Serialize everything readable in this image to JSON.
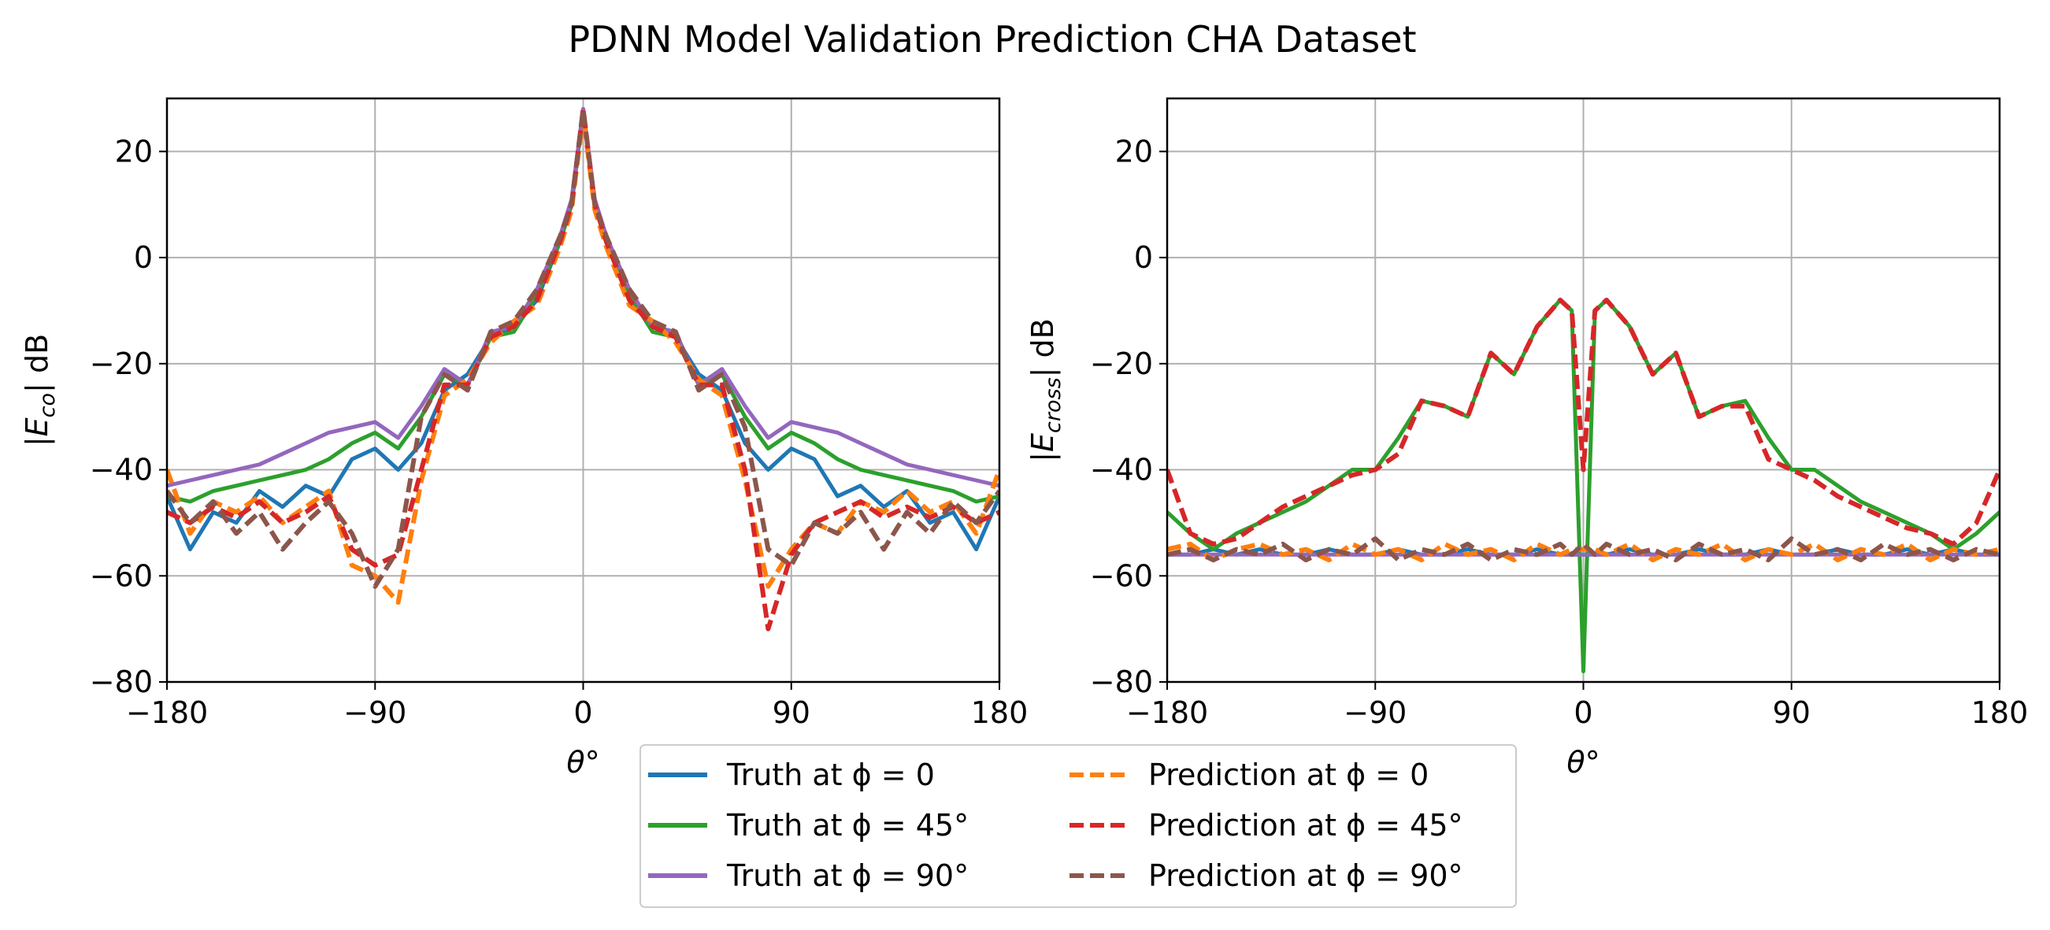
{
  "figure": {
    "title": "PDNN Model Validation Prediction CHA Dataset"
  },
  "legend": {
    "placement": "lower center",
    "columns": 2,
    "entries": [
      {
        "label": "Truth at ϕ = 0",
        "color": "#1f77b4",
        "style": "solid"
      },
      {
        "label": "Truth at ϕ = 45°",
        "color": "#2ca02c",
        "style": "solid"
      },
      {
        "label": "Truth at ϕ = 90°",
        "color": "#9467bd",
        "style": "solid"
      },
      {
        "label": "Prediction at ϕ = 0",
        "color": "#ff7f0e",
        "style": "dashed"
      },
      {
        "label": "Prediction at ϕ = 45°",
        "color": "#d62728",
        "style": "dashed"
      },
      {
        "label": "Prediction at ϕ = 90°",
        "color": "#8c564b",
        "style": "dashed"
      }
    ]
  },
  "chart_data": [
    {
      "type": "line",
      "title": "",
      "xlabel": "θ°",
      "ylabel": "|E_co| dB",
      "xlim": [
        -180,
        180
      ],
      "ylim": [
        -80,
        30
      ],
      "xticks": [
        -180,
        -90,
        0,
        90,
        180
      ],
      "yticks": [
        -80,
        -60,
        -40,
        -20,
        0,
        20
      ],
      "grid": true,
      "x": [
        -180,
        -170,
        -160,
        -150,
        -140,
        -130,
        -120,
        -110,
        -100,
        -90,
        -80,
        -70,
        -60,
        -50,
        -40,
        -30,
        -20,
        -10,
        -5,
        0,
        5,
        10,
        20,
        30,
        40,
        50,
        60,
        70,
        80,
        90,
        100,
        110,
        120,
        130,
        140,
        150,
        160,
        170,
        180
      ],
      "series": [
        {
          "name": "Truth at ϕ = 0",
          "color": "#1f77b4",
          "style": "solid",
          "values": [
            -45,
            -55,
            -48,
            -50,
            -44,
            -47,
            -43,
            -45,
            -38,
            -36,
            -40,
            -35,
            -25,
            -22,
            -15,
            -13,
            -8,
            3,
            10,
            28,
            10,
            3,
            -8,
            -13,
            -15,
            -22,
            -25,
            -35,
            -40,
            -36,
            -38,
            -45,
            -43,
            -47,
            -44,
            -50,
            -48,
            -55,
            -45
          ]
        },
        {
          "name": "Truth at ϕ = 45°",
          "color": "#2ca02c",
          "style": "solid",
          "values": [
            -45,
            -46,
            -44,
            -43,
            -42,
            -41,
            -40,
            -38,
            -35,
            -33,
            -36,
            -30,
            -22,
            -24,
            -15,
            -14,
            -7,
            3,
            10,
            28,
            10,
            3,
            -7,
            -14,
            -15,
            -24,
            -22,
            -30,
            -36,
            -33,
            -35,
            -38,
            -40,
            -41,
            -42,
            -43,
            -44,
            -46,
            -45
          ]
        },
        {
          "name": "Truth at ϕ = 90°",
          "color": "#9467bd",
          "style": "solid",
          "values": [
            -43,
            -42,
            -41,
            -40,
            -39,
            -37,
            -35,
            -33,
            -32,
            -31,
            -34,
            -28,
            -21,
            -24,
            -14,
            -13,
            -6,
            4,
            11,
            28,
            11,
            4,
            -6,
            -13,
            -14,
            -24,
            -21,
            -28,
            -34,
            -31,
            -32,
            -33,
            -35,
            -37,
            -39,
            -40,
            -41,
            -42,
            -43
          ]
        },
        {
          "name": "Prediction at ϕ = 0",
          "color": "#ff7f0e",
          "style": "dashed",
          "values": [
            -40,
            -52,
            -46,
            -48,
            -45,
            -50,
            -47,
            -44,
            -58,
            -60,
            -65,
            -42,
            -26,
            -23,
            -16,
            -12,
            -9,
            2,
            9,
            27,
            9,
            2,
            -9,
            -12,
            -16,
            -23,
            -26,
            -42,
            -62,
            -55,
            -50,
            -52,
            -46,
            -48,
            -44,
            -48,
            -46,
            -52,
            -40
          ]
        },
        {
          "name": "Prediction at ϕ = 45°",
          "color": "#d62728",
          "style": "dashed",
          "values": [
            -48,
            -50,
            -47,
            -49,
            -46,
            -50,
            -48,
            -45,
            -55,
            -58,
            -56,
            -40,
            -24,
            -24,
            -15,
            -13,
            -8,
            3,
            10,
            28,
            10,
            3,
            -8,
            -13,
            -15,
            -24,
            -24,
            -40,
            -70,
            -56,
            -50,
            -48,
            -46,
            -49,
            -47,
            -49,
            -47,
            -50,
            -48
          ]
        },
        {
          "name": "Prediction at ϕ = 90°",
          "color": "#8c564b",
          "style": "dashed",
          "values": [
            -44,
            -50,
            -46,
            -52,
            -48,
            -55,
            -50,
            -46,
            -52,
            -62,
            -55,
            -30,
            -22,
            -25,
            -14,
            -12,
            -6,
            4,
            10,
            28,
            10,
            4,
            -6,
            -12,
            -14,
            -25,
            -22,
            -32,
            -55,
            -58,
            -50,
            -52,
            -48,
            -55,
            -48,
            -52,
            -46,
            -50,
            -44
          ]
        }
      ]
    },
    {
      "type": "line",
      "title": "",
      "xlabel": "θ°",
      "ylabel": "|E_cross| dB",
      "xlim": [
        -180,
        180
      ],
      "ylim": [
        -80,
        30
      ],
      "xticks": [
        -180,
        -90,
        0,
        90,
        180
      ],
      "yticks": [
        -80,
        -60,
        -40,
        -20,
        0,
        20
      ],
      "grid": true,
      "x": [
        -180,
        -170,
        -160,
        -150,
        -140,
        -130,
        -120,
        -110,
        -100,
        -90,
        -80,
        -70,
        -60,
        -50,
        -40,
        -30,
        -20,
        -10,
        -5,
        0,
        5,
        10,
        20,
        30,
        40,
        50,
        60,
        70,
        80,
        90,
        100,
        110,
        120,
        130,
        140,
        150,
        160,
        170,
        180
      ],
      "series": [
        {
          "name": "Truth at ϕ = 0",
          "color": "#1f77b4",
          "style": "solid",
          "values": [
            -56,
            -56,
            -55,
            -56,
            -55,
            -56,
            -56,
            -55,
            -56,
            -56,
            -55,
            -56,
            -56,
            -55,
            -56,
            -56,
            -55,
            -56,
            -56,
            -56,
            -56,
            -56,
            -55,
            -56,
            -56,
            -55,
            -56,
            -56,
            -55,
            -56,
            -56,
            -55,
            -56,
            -56,
            -55,
            -56,
            -55,
            -56,
            -56
          ]
        },
        {
          "name": "Truth at ϕ = 45°",
          "color": "#2ca02c",
          "style": "solid",
          "values": [
            -48,
            -52,
            -55,
            -52,
            -50,
            -48,
            -46,
            -43,
            -40,
            -40,
            -34,
            -27,
            -28,
            -30,
            -18,
            -22,
            -13,
            -8,
            -10,
            -78,
            -10,
            -8,
            -13,
            -22,
            -18,
            -30,
            -28,
            -27,
            -34,
            -40,
            -40,
            -43,
            -46,
            -48,
            -50,
            -52,
            -55,
            -52,
            -48
          ]
        },
        {
          "name": "Truth at ϕ = 90°",
          "color": "#9467bd",
          "style": "solid",
          "values": [
            -56,
            -56,
            -56,
            -56,
            -56,
            -56,
            -56,
            -56,
            -56,
            -56,
            -56,
            -56,
            -56,
            -56,
            -56,
            -56,
            -56,
            -56,
            -56,
            -56,
            -56,
            -56,
            -56,
            -56,
            -56,
            -56,
            -56,
            -56,
            -56,
            -56,
            -56,
            -56,
            -56,
            -56,
            -56,
            -56,
            -56,
            -56,
            -56
          ]
        },
        {
          "name": "Prediction at ϕ = 0",
          "color": "#ff7f0e",
          "style": "dashed",
          "values": [
            -55,
            -54,
            -57,
            -55,
            -54,
            -56,
            -55,
            -57,
            -54,
            -56,
            -55,
            -57,
            -54,
            -56,
            -55,
            -57,
            -54,
            -56,
            -55,
            -55,
            -55,
            -56,
            -54,
            -57,
            -55,
            -56,
            -54,
            -57,
            -55,
            -56,
            -54,
            -57,
            -55,
            -56,
            -54,
            -57,
            -55,
            -56,
            -55
          ]
        },
        {
          "name": "Prediction at ϕ = 45°",
          "color": "#d62728",
          "style": "dashed",
          "values": [
            -40,
            -52,
            -54,
            -53,
            -50,
            -47,
            -45,
            -43,
            -41,
            -40,
            -37,
            -27,
            -28,
            -30,
            -18,
            -22,
            -13,
            -8,
            -10,
            -40,
            -10,
            -8,
            -13,
            -22,
            -18,
            -30,
            -28,
            -28,
            -38,
            -40,
            -42,
            -45,
            -47,
            -49,
            -51,
            -52,
            -54,
            -50,
            -40
          ]
        },
        {
          "name": "Prediction at ϕ = 90°",
          "color": "#8c564b",
          "style": "dashed",
          "values": [
            -56,
            -55,
            -57,
            -55,
            -56,
            -54,
            -57,
            -55,
            -56,
            -53,
            -57,
            -55,
            -56,
            -54,
            -57,
            -55,
            -56,
            -54,
            -56,
            -54,
            -56,
            -54,
            -56,
            -55,
            -57,
            -54,
            -56,
            -55,
            -57,
            -53,
            -56,
            -55,
            -57,
            -54,
            -56,
            -55,
            -57,
            -55,
            -56
          ]
        }
      ]
    }
  ]
}
